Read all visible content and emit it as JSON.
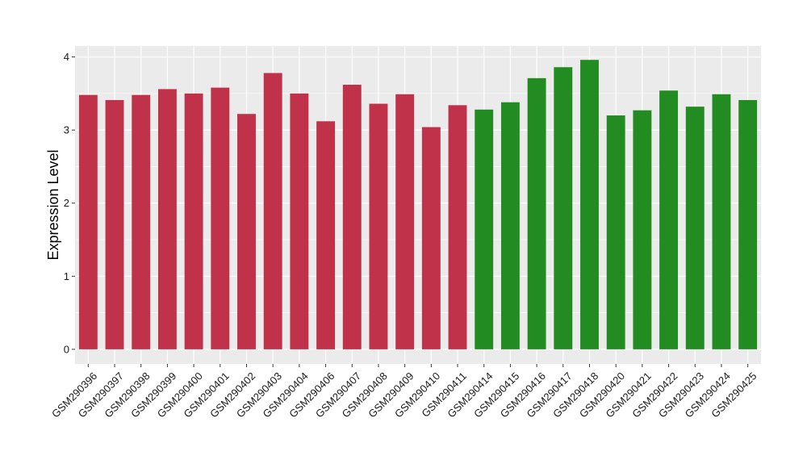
{
  "chart_data": {
    "type": "bar",
    "title": "",
    "xlabel": "",
    "ylabel": "Expression Level",
    "ylim": [
      -0.2,
      4.15
    ],
    "yticks": [
      0,
      1,
      2,
      3,
      4
    ],
    "grid": true,
    "legend": "none",
    "categories": [
      "GSM290396",
      "GSM290397",
      "GSM290398",
      "GSM290399",
      "GSM290400",
      "GSM290401",
      "GSM290402",
      "GSM290403",
      "GSM290404",
      "GSM290406",
      "GSM290407",
      "GSM290408",
      "GSM290409",
      "GSM290410",
      "GSM290411",
      "GSM290414",
      "GSM290415",
      "GSM290416",
      "GSM290417",
      "GSM290418",
      "GSM290420",
      "GSM290421",
      "GSM290422",
      "GSM290423",
      "GSM290424",
      "GSM290425"
    ],
    "values": [
      3.48,
      3.41,
      3.48,
      3.56,
      3.5,
      3.58,
      3.22,
      3.78,
      3.5,
      3.12,
      3.62,
      3.36,
      3.49,
      3.04,
      3.34,
      3.28,
      3.38,
      3.71,
      3.86,
      3.96,
      3.2,
      3.27,
      3.54,
      3.32,
      3.49,
      3.41
    ],
    "groups": [
      0,
      0,
      0,
      0,
      0,
      0,
      0,
      0,
      0,
      0,
      0,
      0,
      0,
      0,
      0,
      1,
      1,
      1,
      1,
      1,
      1,
      1,
      1,
      1,
      1,
      1
    ],
    "group_colors": [
      "#c0314a",
      "#228b22"
    ]
  },
  "style": {
    "panel_background": "#ebebeb",
    "grid_color": "#ffffff"
  }
}
